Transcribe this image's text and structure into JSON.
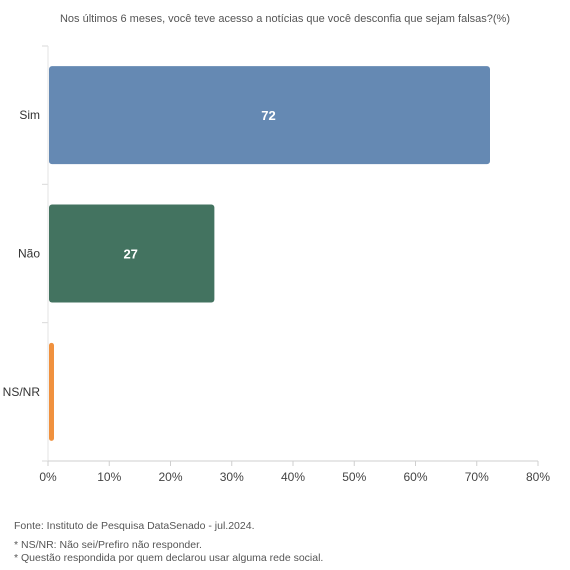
{
  "chart_data": {
    "type": "bar",
    "orientation": "horizontal",
    "title": "Nos últimos 6 meses, você teve acesso a notícias que você desconfia que sejam falsas?(%)",
    "categories": [
      "Sim",
      "Não",
      "NS/NR"
    ],
    "values": [
      72,
      27,
      1
    ],
    "data_labels": [
      "72",
      "27",
      ""
    ],
    "colors": [
      "#6589b3",
      "#437360",
      "#f0913e"
    ],
    "xlim": [
      0,
      80
    ],
    "xticks": [
      0,
      10,
      20,
      30,
      40,
      50,
      60,
      70,
      80
    ],
    "xtick_labels": [
      "0%",
      "10%",
      "20%",
      "30%",
      "40%",
      "50%",
      "60%",
      "70%",
      "80%"
    ],
    "xlabel": "",
    "ylabel": "",
    "grid": false,
    "legend": "none"
  },
  "footer": {
    "source": "Fonte: Instituto de Pesquisa DataSenado - jul.2024.",
    "notes": [
      "*  NS/NR: Não sei/Prefiro não responder.",
      "* Questão respondida por quem declarou usar alguma rede social."
    ]
  }
}
